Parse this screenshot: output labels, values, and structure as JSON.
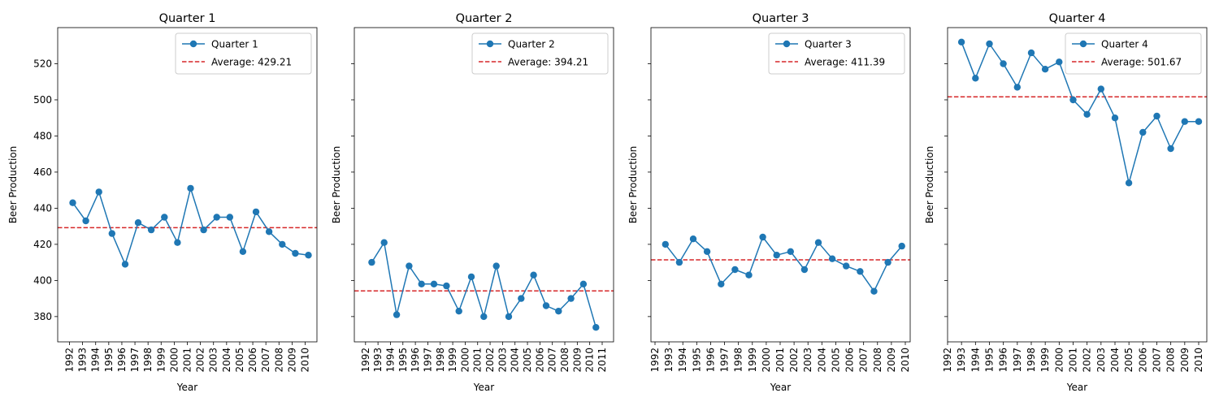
{
  "chart_data": [
    {
      "type": "line",
      "title": "Quarter 1",
      "xlabel": "Year",
      "ylabel": "Beer Production",
      "ylim": [
        366,
        540
      ],
      "yticks": [
        380,
        400,
        420,
        440,
        460,
        480,
        500,
        520
      ],
      "xticks": [
        "1992",
        "1993",
        "1994",
        "1995",
        "1996",
        "1997",
        "1998",
        "1999",
        "2000",
        "2001",
        "2002",
        "2003",
        "2004",
        "2005",
        "2006",
        "2007",
        "2008",
        "2009",
        "2010"
      ],
      "series": [
        {
          "name": "Quarter 1",
          "color": "#1f77b4",
          "points": [
            {
              "x": "1992-04-01",
              "y": 443
            },
            {
              "x": "1993-04-01",
              "y": 433
            },
            {
              "x": "1994-04-01",
              "y": 449
            },
            {
              "x": "1995-04-01",
              "y": 426
            },
            {
              "x": "1996-04-01",
              "y": 409
            },
            {
              "x": "1997-04-01",
              "y": 432
            },
            {
              "x": "1998-04-01",
              "y": 428
            },
            {
              "x": "1999-04-01",
              "y": 435
            },
            {
              "x": "2000-04-01",
              "y": 421
            },
            {
              "x": "2001-04-01",
              "y": 451
            },
            {
              "x": "2002-04-01",
              "y": 428
            },
            {
              "x": "2003-04-01",
              "y": 435
            },
            {
              "x": "2004-04-01",
              "y": 435
            },
            {
              "x": "2005-04-01",
              "y": 416
            },
            {
              "x": "2006-04-01",
              "y": 438
            },
            {
              "x": "2007-04-01",
              "y": 427
            },
            {
              "x": "2008-04-01",
              "y": 420
            },
            {
              "x": "2009-04-01",
              "y": 415
            },
            {
              "x": "2010-04-01",
              "y": 414
            }
          ]
        }
      ],
      "average": {
        "label": "Average: 429.21",
        "value": 429.21,
        "color": "#d62728"
      },
      "grid": false,
      "legend_position": "top-right"
    },
    {
      "type": "line",
      "title": "Quarter 2",
      "xlabel": "Year",
      "ylabel": "Beer Production",
      "ylim": [
        366,
        540
      ],
      "yticks": [
        380,
        400,
        420,
        440,
        460,
        480,
        500,
        520
      ],
      "xticks": [
        "1992",
        "1993",
        "1994",
        "1995",
        "1996",
        "1997",
        "1998",
        "1999",
        "2000",
        "2001",
        "2002",
        "2003",
        "2004",
        "2005",
        "2006",
        "2007",
        "2008",
        "2009",
        "2010",
        "2011"
      ],
      "series": [
        {
          "name": "Quarter 2",
          "color": "#1f77b4",
          "points": [
            {
              "x": "1992-07-01",
              "y": 410
            },
            {
              "x": "1993-07-01",
              "y": 421
            },
            {
              "x": "1994-07-01",
              "y": 381
            },
            {
              "x": "1995-07-01",
              "y": 408
            },
            {
              "x": "1996-07-01",
              "y": 398
            },
            {
              "x": "1997-07-01",
              "y": 398
            },
            {
              "x": "1998-07-01",
              "y": 397
            },
            {
              "x": "1999-07-01",
              "y": 383
            },
            {
              "x": "2000-07-01",
              "y": 402
            },
            {
              "x": "2001-07-01",
              "y": 380
            },
            {
              "x": "2002-07-01",
              "y": 408
            },
            {
              "x": "2003-07-01",
              "y": 380
            },
            {
              "x": "2004-07-01",
              "y": 390
            },
            {
              "x": "2005-07-01",
              "y": 403
            },
            {
              "x": "2006-07-01",
              "y": 386
            },
            {
              "x": "2007-07-01",
              "y": 383
            },
            {
              "x": "2008-07-01",
              "y": 390
            },
            {
              "x": "2009-07-01",
              "y": 398
            },
            {
              "x": "2010-07-01",
              "y": 374
            }
          ]
        }
      ],
      "average": {
        "label": "Average: 394.21",
        "value": 394.21,
        "color": "#d62728"
      },
      "grid": false,
      "legend_position": "top-right"
    },
    {
      "type": "line",
      "title": "Quarter 3",
      "xlabel": "Year",
      "ylabel": "Beer Production",
      "ylim": [
        366,
        540
      ],
      "yticks": [
        380,
        400,
        420,
        440,
        460,
        480,
        500,
        520
      ],
      "xticks": [
        "1992",
        "1993",
        "1994",
        "1995",
        "1996",
        "1997",
        "1998",
        "1999",
        "2000",
        "2001",
        "2002",
        "2003",
        "2004",
        "2005",
        "2006",
        "2007",
        "2008",
        "2009",
        "2010"
      ],
      "series": [
        {
          "name": "Quarter 3",
          "color": "#1f77b4",
          "points": [
            {
              "x": "1992-10-01",
              "y": 420
            },
            {
              "x": "1993-10-01",
              "y": 410
            },
            {
              "x": "1994-10-01",
              "y": 423
            },
            {
              "x": "1995-10-01",
              "y": 416
            },
            {
              "x": "1996-10-01",
              "y": 398
            },
            {
              "x": "1997-10-01",
              "y": 406
            },
            {
              "x": "1998-10-01",
              "y": 403
            },
            {
              "x": "1999-10-01",
              "y": 424
            },
            {
              "x": "2000-10-01",
              "y": 414
            },
            {
              "x": "2001-10-01",
              "y": 416
            },
            {
              "x": "2002-10-01",
              "y": 406
            },
            {
              "x": "2003-10-01",
              "y": 421
            },
            {
              "x": "2004-10-01",
              "y": 412
            },
            {
              "x": "2005-10-01",
              "y": 408
            },
            {
              "x": "2006-10-01",
              "y": 405
            },
            {
              "x": "2007-10-01",
              "y": 394
            },
            {
              "x": "2008-10-01",
              "y": 410
            },
            {
              "x": "2009-10-01",
              "y": 419
            }
          ]
        }
      ],
      "average": {
        "label": "Average: 411.39",
        "value": 411.39,
        "color": "#d62728"
      },
      "grid": false,
      "legend_position": "top-right"
    },
    {
      "type": "line",
      "title": "Quarter 4",
      "xlabel": "Year",
      "ylabel": "Beer Production",
      "ylim": [
        366,
        540
      ],
      "yticks": [
        380,
        400,
        420,
        440,
        460,
        480,
        500,
        520
      ],
      "xticks": [
        "1992",
        "1993",
        "1994",
        "1995",
        "1996",
        "1997",
        "1998",
        "1999",
        "2000",
        "2001",
        "2002",
        "2003",
        "2004",
        "2005",
        "2006",
        "2007",
        "2008",
        "2009",
        "2010"
      ],
      "series": [
        {
          "name": "Quarter 4",
          "color": "#1f77b4",
          "points": [
            {
              "x": "1992-12-31",
              "y": 532
            },
            {
              "x": "1993-12-31",
              "y": 512
            },
            {
              "x": "1994-12-31",
              "y": 531
            },
            {
              "x": "1995-12-31",
              "y": 520
            },
            {
              "x": "1996-12-31",
              "y": 507
            },
            {
              "x": "1997-12-31",
              "y": 526
            },
            {
              "x": "1998-12-31",
              "y": 517
            },
            {
              "x": "1999-12-31",
              "y": 521
            },
            {
              "x": "2000-12-31",
              "y": 500
            },
            {
              "x": "2001-12-31",
              "y": 492
            },
            {
              "x": "2002-12-31",
              "y": 506
            },
            {
              "x": "2003-12-31",
              "y": 490
            },
            {
              "x": "2004-12-31",
              "y": 454
            },
            {
              "x": "2005-12-31",
              "y": 482
            },
            {
              "x": "2006-12-31",
              "y": 491
            },
            {
              "x": "2007-12-31",
              "y": 473
            },
            {
              "x": "2008-12-31",
              "y": 488
            },
            {
              "x": "2009-12-31",
              "y": 488
            }
          ]
        }
      ],
      "average": {
        "label": "Average: 501.67",
        "value": 501.67,
        "color": "#d62728"
      },
      "grid": false,
      "legend_position": "top-right"
    }
  ]
}
